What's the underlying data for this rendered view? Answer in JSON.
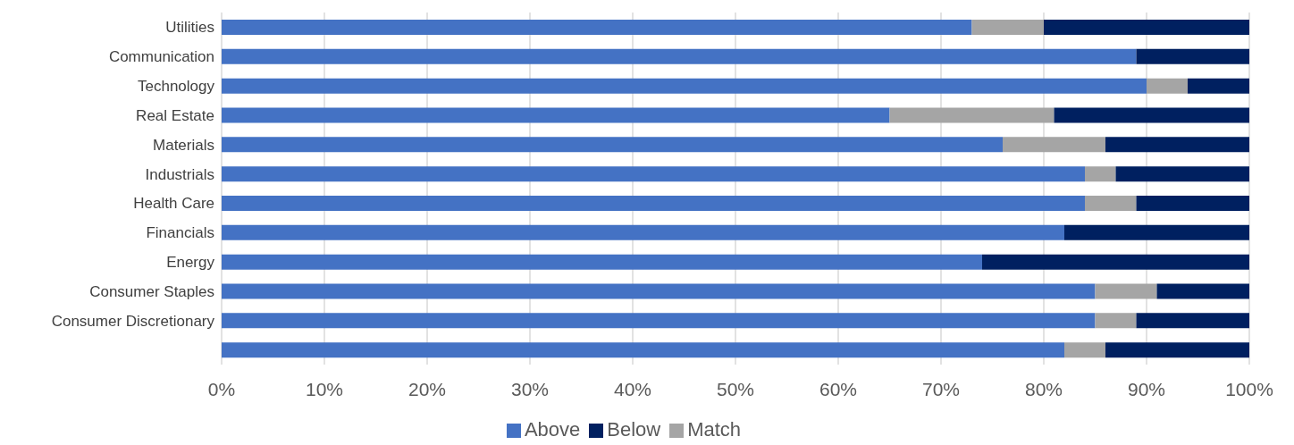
{
  "chart_data": {
    "type": "bar",
    "orientation": "horizontal",
    "stacked": true,
    "categories": [
      "Utilities",
      "Communication",
      "Technology",
      "Real Estate",
      "Materials",
      "Industrials",
      "Health Care",
      "Financials",
      "Energy",
      "Consumer Staples",
      "Consumer Discretionary",
      null
    ],
    "series": [
      {
        "name": "Above",
        "color": "#4472c4",
        "values": [
          73,
          89,
          90,
          65,
          76,
          84,
          84,
          82,
          74,
          85,
          85,
          82
        ]
      },
      {
        "name": "Match",
        "color": "#a5a5a5",
        "values": [
          7,
          0,
          4,
          16,
          10,
          3,
          5,
          0,
          0,
          6,
          4,
          4
        ]
      },
      {
        "name": "Below",
        "color": "#002060",
        "values": [
          20,
          11,
          6,
          19,
          14,
          13,
          11,
          18,
          26,
          9,
          11,
          14
        ]
      }
    ],
    "xlim": [
      0,
      100
    ],
    "xticks": [
      {
        "value": 0,
        "label": "0%"
      },
      {
        "value": 10,
        "label": "10%"
      },
      {
        "value": 20,
        "label": "20%"
      },
      {
        "value": 30,
        "label": "30%"
      },
      {
        "value": 40,
        "label": "40%"
      },
      {
        "value": 50,
        "label": "50%"
      },
      {
        "value": 60,
        "label": "60%"
      },
      {
        "value": 70,
        "label": "70%"
      },
      {
        "value": 80,
        "label": "80%"
      },
      {
        "value": 90,
        "label": "90%"
      },
      {
        "value": 100,
        "label": "100%"
      }
    ],
    "grid": "x",
    "legend": "bottom"
  }
}
